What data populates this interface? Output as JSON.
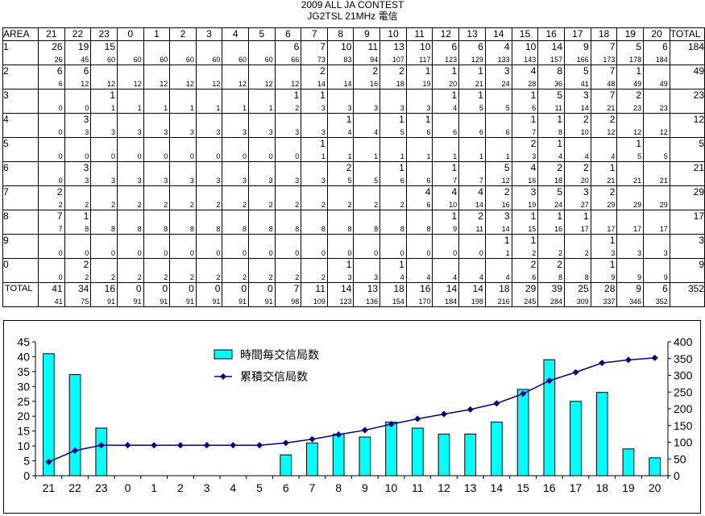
{
  "title": "2009 ALL JA CONTEST",
  "subtitle": "JG2TSL  21MHz 電信",
  "table": {
    "area_header": "AREA",
    "total_header": "TOTAL",
    "hours": [
      "21",
      "22",
      "23",
      "0",
      "1",
      "2",
      "3",
      "4",
      "5",
      "6",
      "7",
      "8",
      "9",
      "10",
      "11",
      "12",
      "13",
      "14",
      "15",
      "16",
      "17",
      "18",
      "19",
      "20"
    ],
    "rows": [
      {
        "label": "1",
        "values": [
          "26",
          "19",
          "15",
          "",
          "",
          "",
          "",
          "",
          "",
          "6",
          "7",
          "10",
          "11",
          "13",
          "10",
          "6",
          "6",
          "4",
          "10",
          "14",
          "9",
          "7",
          "5",
          "6"
        ],
        "cum": [
          "26",
          "45",
          "60",
          "60",
          "60",
          "60",
          "60",
          "60",
          "60",
          "66",
          "73",
          "83",
          "94",
          "107",
          "117",
          "123",
          "129",
          "133",
          "143",
          "157",
          "166",
          "173",
          "178",
          "184"
        ],
        "total": "184"
      },
      {
        "label": "2",
        "values": [
          "6",
          "6",
          "",
          "",
          "",
          "",
          "",
          "",
          "",
          "",
          "2",
          "",
          "2",
          "2",
          "1",
          "1",
          "1",
          "3",
          "4",
          "8",
          "5",
          "7",
          "1",
          ""
        ],
        "cum": [
          "6",
          "12",
          "12",
          "12",
          "12",
          "12",
          "12",
          "12",
          "12",
          "12",
          "14",
          "14",
          "16",
          "18",
          "19",
          "20",
          "21",
          "24",
          "28",
          "36",
          "41",
          "48",
          "49",
          "49"
        ],
        "total": "49"
      },
      {
        "label": "3",
        "values": [
          "",
          "",
          "1",
          "",
          "",
          "",
          "",
          "",
          "",
          "1",
          "1",
          "",
          "",
          "",
          "",
          "1",
          "1",
          "",
          "1",
          "5",
          "3",
          "7",
          "2",
          ""
        ],
        "cum": [
          "0",
          "0",
          "1",
          "1",
          "1",
          "1",
          "1",
          "1",
          "1",
          "2",
          "3",
          "3",
          "3",
          "3",
          "3",
          "4",
          "5",
          "5",
          "6",
          "11",
          "14",
          "21",
          "23",
          "23"
        ],
        "total": "23"
      },
      {
        "label": "4",
        "values": [
          "",
          "3",
          "",
          "",
          "",
          "",
          "",
          "",
          "",
          "",
          "",
          "1",
          "",
          "1",
          "1",
          "",
          "",
          "",
          "1",
          "1",
          "2",
          "2",
          "",
          ""
        ],
        "cum": [
          "0",
          "3",
          "3",
          "3",
          "3",
          "3",
          "3",
          "3",
          "3",
          "3",
          "3",
          "4",
          "4",
          "5",
          "6",
          "6",
          "6",
          "6",
          "7",
          "8",
          "10",
          "12",
          "12",
          "12"
        ],
        "total": "12"
      },
      {
        "label": "5",
        "values": [
          "",
          "",
          "",
          "",
          "",
          "",
          "",
          "",
          "",
          "",
          "1",
          "",
          "",
          "",
          "",
          "",
          "",
          "",
          "2",
          "1",
          "",
          "",
          "1",
          ""
        ],
        "cum": [
          "0",
          "0",
          "0",
          "0",
          "0",
          "0",
          "0",
          "0",
          "0",
          "0",
          "1",
          "1",
          "1",
          "1",
          "1",
          "1",
          "1",
          "1",
          "3",
          "4",
          "4",
          "4",
          "5",
          "5"
        ],
        "total": "5"
      },
      {
        "label": "6",
        "values": [
          "",
          "3",
          "",
          "",
          "",
          "",
          "",
          "",
          "",
          "",
          "",
          "2",
          "",
          "1",
          "",
          "1",
          "",
          "5",
          "4",
          "2",
          "2",
          "1",
          "",
          ""
        ],
        "cum": [
          "0",
          "3",
          "3",
          "3",
          "3",
          "3",
          "3",
          "3",
          "3",
          "3",
          "3",
          "5",
          "5",
          "6",
          "6",
          "7",
          "7",
          "12",
          "16",
          "18",
          "20",
          "21",
          "21",
          "21"
        ],
        "total": "21"
      },
      {
        "label": "7",
        "values": [
          "2",
          "",
          "",
          "",
          "",
          "",
          "",
          "",
          "",
          "",
          "",
          "",
          "",
          "",
          "4",
          "4",
          "4",
          "2",
          "3",
          "5",
          "3",
          "2",
          "",
          ""
        ],
        "cum": [
          "2",
          "2",
          "2",
          "2",
          "2",
          "2",
          "2",
          "2",
          "2",
          "2",
          "2",
          "2",
          "2",
          "2",
          "6",
          "10",
          "14",
          "16",
          "19",
          "24",
          "27",
          "29",
          "29",
          "29"
        ],
        "total": "29"
      },
      {
        "label": "8",
        "values": [
          "7",
          "1",
          "",
          "",
          "",
          "",
          "",
          "",
          "",
          "",
          "",
          "",
          "",
          "",
          "",
          "1",
          "2",
          "3",
          "1",
          "1",
          "1",
          "",
          "",
          ""
        ],
        "cum": [
          "7",
          "8",
          "8",
          "8",
          "8",
          "8",
          "8",
          "8",
          "8",
          "8",
          "8",
          "8",
          "8",
          "8",
          "8",
          "9",
          "11",
          "14",
          "15",
          "16",
          "17",
          "17",
          "17",
          "17"
        ],
        "total": "17"
      },
      {
        "label": "9",
        "values": [
          "",
          "",
          "",
          "",
          "",
          "",
          "",
          "",
          "",
          "",
          "",
          "",
          "",
          "",
          "",
          "",
          "",
          "1",
          "1",
          "",
          "",
          "1",
          "",
          ""
        ],
        "cum": [
          "0",
          "0",
          "0",
          "0",
          "0",
          "0",
          "0",
          "0",
          "0",
          "0",
          "0",
          "0",
          "0",
          "0",
          "0",
          "0",
          "0",
          "1",
          "2",
          "2",
          "2",
          "3",
          "3",
          "3"
        ],
        "total": "3"
      },
      {
        "label": "0",
        "values": [
          "",
          "2",
          "",
          "",
          "",
          "",
          "",
          "",
          "",
          "",
          "",
          "1",
          "",
          "1",
          "",
          "",
          "",
          "",
          "2",
          "2",
          "",
          "1",
          "",
          ""
        ],
        "cum": [
          "0",
          "2",
          "2",
          "2",
          "2",
          "2",
          "2",
          "2",
          "2",
          "2",
          "2",
          "3",
          "3",
          "4",
          "4",
          "4",
          "4",
          "4",
          "6",
          "8",
          "8",
          "9",
          "9",
          "9"
        ],
        "total": "9"
      }
    ],
    "total_row": {
      "label": "TOTAL",
      "values": [
        "41",
        "34",
        "16",
        "0",
        "0",
        "0",
        "0",
        "0",
        "0",
        "7",
        "11",
        "14",
        "13",
        "18",
        "16",
        "14",
        "14",
        "18",
        "29",
        "39",
        "25",
        "28",
        "9",
        "6"
      ],
      "cum": [
        "41",
        "75",
        "91",
        "91",
        "91",
        "91",
        "91",
        "91",
        "91",
        "98",
        "109",
        "123",
        "136",
        "154",
        "170",
        "184",
        "198",
        "216",
        "245",
        "284",
        "309",
        "337",
        "346",
        "352"
      ],
      "total": "352"
    }
  },
  "chart_data": {
    "type": "bar",
    "categories": [
      "21",
      "22",
      "23",
      "0",
      "1",
      "2",
      "3",
      "4",
      "5",
      "6",
      "7",
      "8",
      "9",
      "10",
      "11",
      "12",
      "13",
      "14",
      "15",
      "16",
      "17",
      "18",
      "19",
      "20"
    ],
    "series": [
      {
        "name": "時間毎交信局数",
        "type": "bar",
        "axis": "left",
        "values": [
          41,
          34,
          16,
          0,
          0,
          0,
          0,
          0,
          0,
          7,
          11,
          14,
          13,
          18,
          16,
          14,
          14,
          18,
          29,
          39,
          25,
          28,
          9,
          6
        ]
      },
      {
        "name": "累積交信局数",
        "type": "line",
        "axis": "right",
        "values": [
          41,
          75,
          91,
          91,
          91,
          91,
          91,
          91,
          91,
          98,
          109,
          123,
          136,
          154,
          170,
          184,
          198,
          216,
          245,
          284,
          309,
          337,
          346,
          352
        ]
      }
    ],
    "ylim_left": [
      0,
      45
    ],
    "yticks_left": [
      0,
      5,
      10,
      15,
      20,
      25,
      30,
      35,
      40,
      45
    ],
    "ylim_right": [
      0,
      400
    ],
    "yticks_right": [
      0,
      50,
      100,
      150,
      200,
      250,
      300,
      350,
      400
    ],
    "legend": "top-left",
    "colors": {
      "bar": "#00ffff",
      "bar_edge": "#000000",
      "line": "#000080"
    }
  }
}
